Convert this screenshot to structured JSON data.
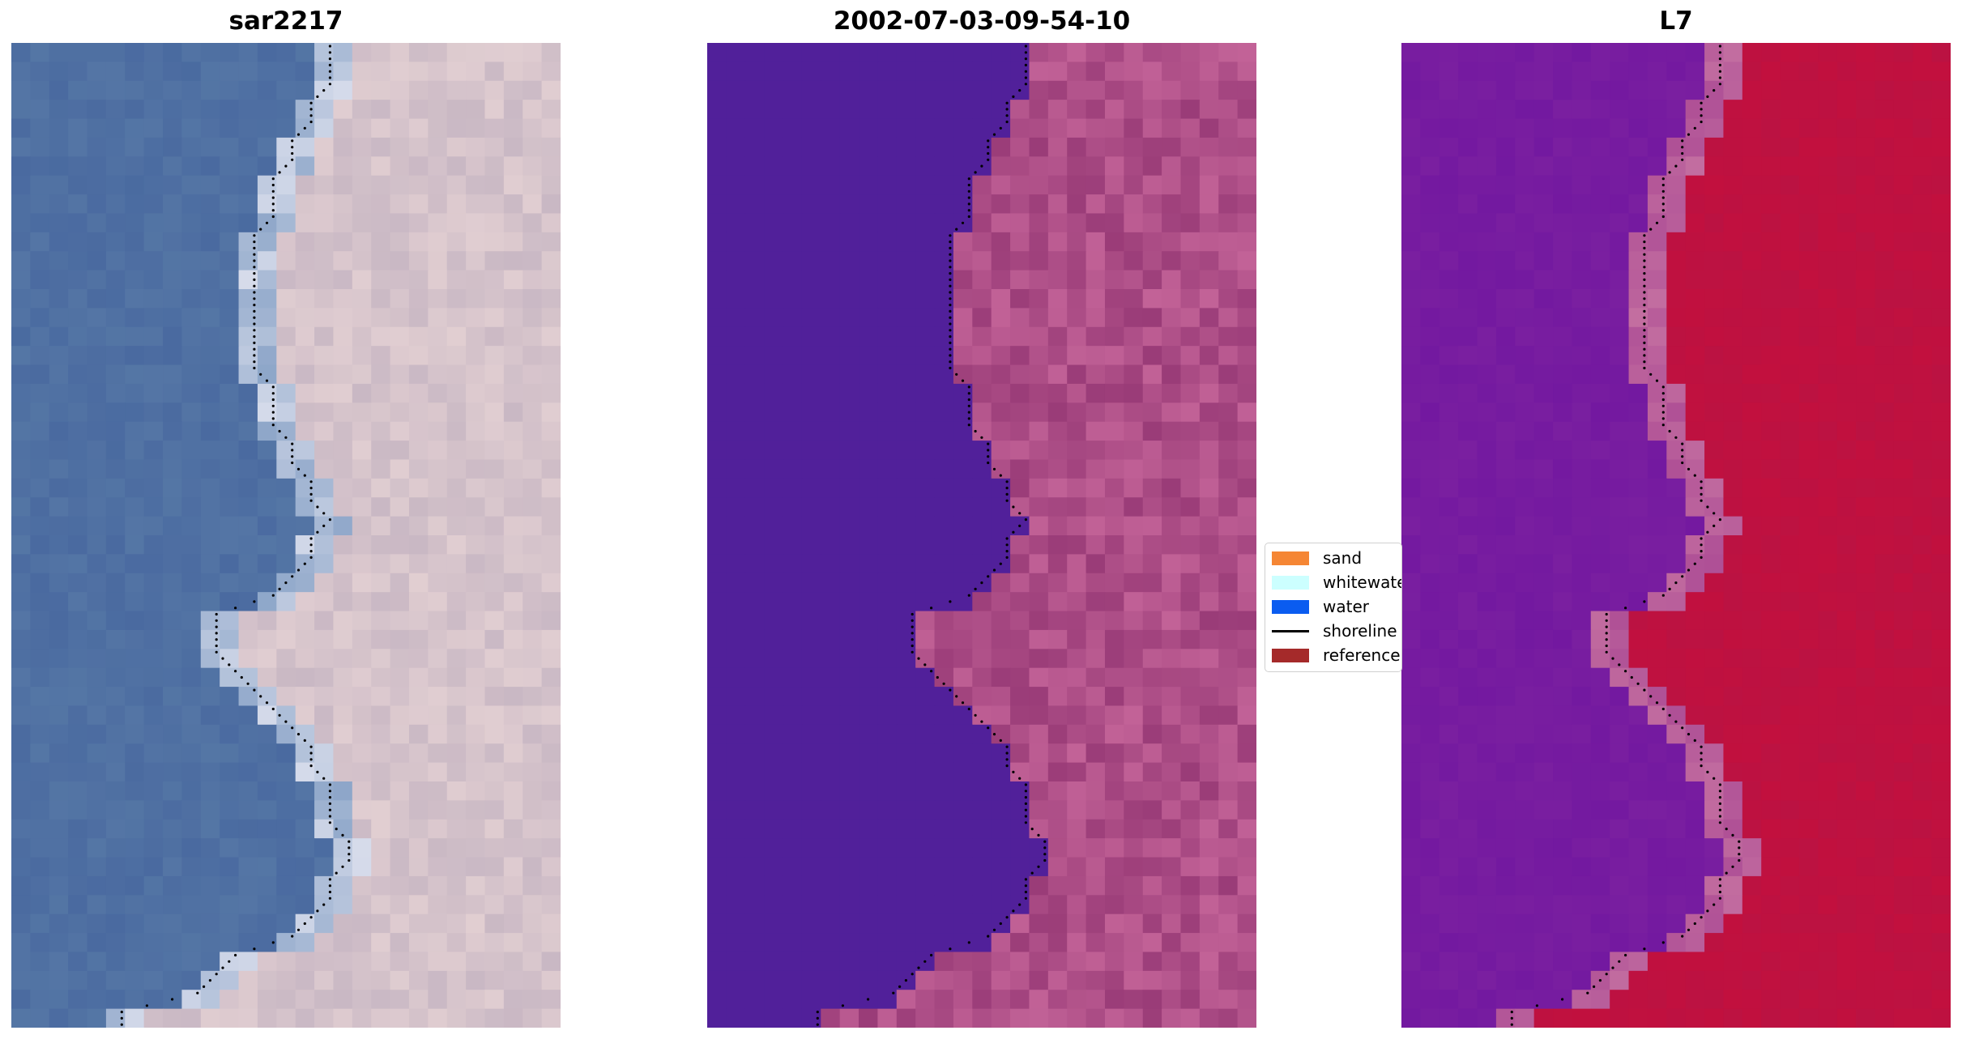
{
  "panels": [
    {
      "title": "sar2217",
      "kind": "rgb"
    },
    {
      "title": "2002-07-03-09-54-10",
      "kind": "classified"
    },
    {
      "title": "L7",
      "kind": "index"
    }
  ],
  "legend": {
    "items": [
      {
        "label": "sand",
        "type": "patch",
        "color": "#f58634"
      },
      {
        "label": "whitewater",
        "type": "patch",
        "color": "#ccffff"
      },
      {
        "label": "water",
        "type": "patch",
        "color": "#0a5cf0"
      },
      {
        "label": "shoreline",
        "type": "line",
        "color": "#000000"
      },
      {
        "label": "reference",
        "type": "patch",
        "color": "#a52a2a"
      }
    ]
  },
  "colors": {
    "water_class": "#51209a",
    "land_dark": "#9a3c78",
    "land_light": "#c26297",
    "index_water": "#7a1fa0",
    "index_land": "#c2103e",
    "rgb_water": "#4a6aa0",
    "rgb_land": "#c9b8c4"
  }
}
